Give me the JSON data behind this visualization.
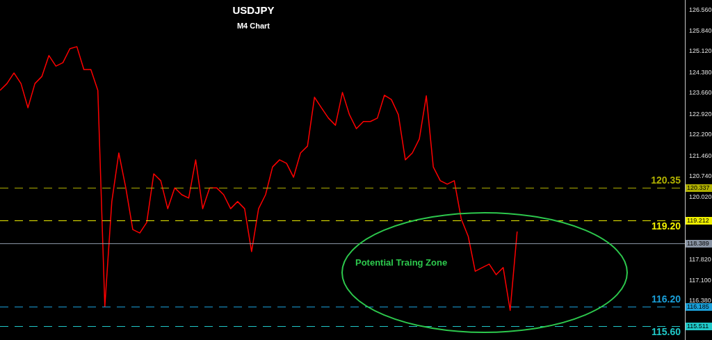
{
  "chart_data": {
    "type": "line",
    "title": "USDJPY",
    "subtitle": "M4 Chart",
    "categories": [
      null,
      null,
      null,
      null,
      null,
      null,
      null,
      null,
      null,
      null,
      null,
      null,
      null,
      null,
      null,
      null,
      null,
      null,
      null,
      null,
      null,
      null,
      null,
      null,
      null,
      null,
      null,
      null,
      null,
      null,
      null,
      null,
      null,
      null,
      null,
      null,
      null,
      null,
      null,
      null,
      null,
      null,
      null,
      null,
      null,
      null,
      null,
      null,
      null,
      null,
      null,
      null,
      null,
      null,
      null,
      null,
      null,
      null,
      null,
      null,
      null,
      null,
      null,
      null,
      null,
      null,
      null,
      null,
      null,
      null,
      null,
      null,
      null,
      null,
      null,
      null,
      null,
      null,
      null,
      null,
      null,
      null,
      null,
      null,
      null,
      null,
      null,
      null,
      null,
      null,
      null,
      null,
      null,
      null,
      null,
      null,
      null,
      null,
      null
    ],
    "series": [
      {
        "color": "#ff0000",
        "values": [
          123.75,
          123.99,
          124.36,
          123.99,
          123.14,
          123.99,
          124.24,
          124.97,
          124.6,
          124.72,
          125.21,
          125.28,
          124.48,
          124.48,
          123.75,
          116.19,
          119.86,
          121.56,
          120.34,
          118.88,
          118.76,
          119.13,
          120.83,
          120.59,
          119.61,
          120.34,
          120.1,
          119.98,
          121.32,
          119.61,
          120.34,
          120.34,
          120.1,
          119.61,
          119.86,
          119.61,
          118.11,
          119.61,
          120.1,
          121.07,
          121.32,
          121.2,
          120.71,
          121.56,
          121.8,
          123.51,
          123.14,
          122.78,
          122.53,
          123.68,
          122.9,
          122.41,
          122.66,
          122.66,
          122.78,
          123.58,
          123.43,
          122.9,
          121.32,
          121.56,
          122.05,
          123.56,
          121.07,
          120.59,
          120.47,
          120.59,
          119.25,
          118.64,
          117.42,
          117.55,
          117.67,
          117.3,
          117.55,
          116.05,
          118.81,
          null,
          null,
          null,
          null,
          null,
          null,
          null,
          null,
          null,
          null,
          null,
          null,
          null,
          null,
          null,
          null,
          null,
          null,
          null,
          null,
          null,
          null,
          null,
          null
        ]
      }
    ],
    "ylim": [
      115.015,
      126.913
    ],
    "yticks": [
      {
        "value": 126.56,
        "label": "126.560"
      },
      {
        "value": 125.84,
        "label": "125.840"
      },
      {
        "value": 125.12,
        "label": "125.120"
      },
      {
        "value": 124.38,
        "label": "124.380"
      },
      {
        "value": 123.66,
        "label": "123.660"
      },
      {
        "value": 122.92,
        "label": "122.920"
      },
      {
        "value": 122.2,
        "label": "122.200"
      },
      {
        "value": 121.46,
        "label": "121.460"
      },
      {
        "value": 120.74,
        "label": "120.740"
      },
      {
        "value": 120.02,
        "label": "120.020"
      },
      {
        "value": 117.82,
        "label": "117.820"
      },
      {
        "value": 117.1,
        "label": "117.100"
      },
      {
        "value": 116.38,
        "label": "116.380"
      }
    ],
    "ref_lines": [
      {
        "axis": "y",
        "value": 120.337,
        "label": "120.337",
        "color": "#b0b000",
        "line_style": "dashed"
      },
      {
        "axis": "y",
        "value": 119.212,
        "label": "119.212",
        "color": "#f0f000",
        "line_style": "dashed"
      },
      {
        "axis": "y",
        "value": 118.389,
        "label": "118.389",
        "color": "#8a95a5",
        "line_style": "solid"
      },
      {
        "axis": "y",
        "value": 116.185,
        "label": "116.185",
        "color": "#1a9fd8",
        "line_style": "dashed"
      },
      {
        "axis": "y",
        "value": 115.511,
        "label": "115.511",
        "color": "#20c8c8",
        "line_style": "dashed"
      }
    ],
    "annotations": [
      "Potential Traing Zone",
      "120.35",
      "119.20",
      "116.20",
      "115.60"
    ],
    "grid": false,
    "legend": false,
    "marker": "none",
    "line_style": "solid",
    "tick_labels": "y"
  }
}
